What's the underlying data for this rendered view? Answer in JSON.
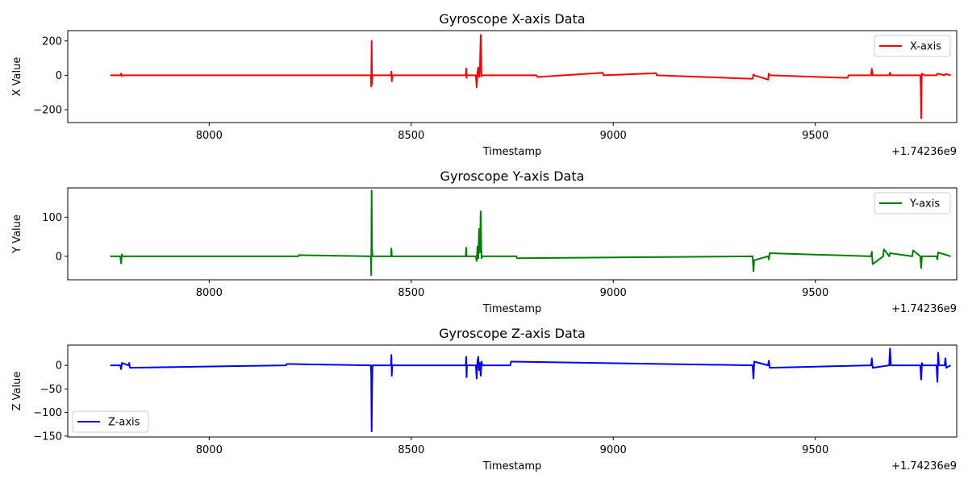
{
  "chart_data": [
    {
      "type": "line",
      "title": "Gyroscope X-axis Data",
      "xlabel": "Timestamp",
      "ylabel": "X Value",
      "offset_label": "+1.74236e9",
      "xlim": [
        7650,
        9850
      ],
      "ylim": [
        -275,
        260
      ],
      "xticks": [
        8000,
        8500,
        9000,
        9500
      ],
      "yticks": [
        -200,
        0,
        200
      ],
      "grid": false,
      "legend_position": "upper right",
      "series": [
        {
          "name": "X-axis",
          "color": "#ff0000",
          "x": [
            7755,
            7780,
            7782,
            7784,
            7786,
            8400,
            8401,
            8402,
            8403,
            8404,
            8450,
            8451,
            8452,
            8453,
            8635,
            8636,
            8637,
            8638,
            8660,
            8662,
            8664,
            8666,
            8668,
            8670,
            8672,
            8674,
            8676,
            8810,
            8812,
            8974,
            8976,
            9106,
            9108,
            9345,
            9347,
            9349,
            9383,
            9385,
            9387,
            9580,
            9582,
            9638,
            9640,
            9642,
            9683,
            9685,
            9687,
            9760,
            9761,
            9762,
            9763,
            9764,
            9770,
            9800,
            9802,
            9820,
            9822,
            9835
          ],
          "y": [
            0,
            0,
            10,
            -5,
            0,
            0,
            -65,
            200,
            -50,
            0,
            0,
            22,
            -35,
            0,
            0,
            40,
            -15,
            0,
            0,
            -70,
            20,
            45,
            -10,
            30,
            235,
            -5,
            0,
            0,
            -10,
            15,
            0,
            12,
            0,
            -20,
            5,
            0,
            -25,
            10,
            0,
            -15,
            0,
            0,
            38,
            0,
            0,
            15,
            0,
            0,
            -50,
            -250,
            -20,
            10,
            0,
            0,
            10,
            0,
            8,
            0
          ]
        }
      ]
    },
    {
      "type": "line",
      "title": "Gyroscope Y-axis Data",
      "xlabel": "Timestamp",
      "ylabel": "Y Value",
      "offset_label": "+1.74236e9",
      "xlim": [
        7650,
        9850
      ],
      "ylim": [
        -60,
        175
      ],
      "xticks": [
        8000,
        8500,
        9000,
        9500
      ],
      "yticks": [
        0,
        100
      ],
      "grid": false,
      "legend_position": "upper right",
      "series": [
        {
          "name": "Y-axis",
          "color": "#008000",
          "x": [
            7755,
            7780,
            7782,
            7784,
            7786,
            8220,
            8222,
            8400,
            8401,
            8402,
            8403,
            8404,
            8450,
            8451,
            8452,
            8635,
            8636,
            8637,
            8660,
            8662,
            8664,
            8666,
            8668,
            8670,
            8672,
            8674,
            8676,
            8760,
            8762,
            9345,
            9347,
            9349,
            9383,
            9385,
            9387,
            9638,
            9640,
            9642,
            9668,
            9670,
            9683,
            9685,
            9740,
            9742,
            9760,
            9762,
            9764,
            9800,
            9802,
            9804,
            9835
          ],
          "y": [
            0,
            0,
            -18,
            5,
            0,
            0,
            3,
            0,
            -48,
            168,
            20,
            0,
            0,
            20,
            0,
            0,
            22,
            0,
            0,
            -12,
            25,
            -5,
            70,
            10,
            115,
            -5,
            0,
            0,
            -5,
            0,
            -38,
            -10,
            0,
            -8,
            8,
            0,
            12,
            -20,
            0,
            18,
            0,
            8,
            0,
            15,
            0,
            -30,
            0,
            0,
            -8,
            10,
            0
          ]
        }
      ]
    },
    {
      "type": "line",
      "title": "Gyroscope Z-axis Data",
      "xlabel": "Timestamp",
      "ylabel": "Z Value",
      "offset_label": "+1.74236e9",
      "xlim": [
        7650,
        9850
      ],
      "ylim": [
        -152,
        43
      ],
      "xticks": [
        8000,
        8500,
        9000,
        9500
      ],
      "yticks": [
        -150,
        -100,
        -50,
        0
      ],
      "grid": false,
      "legend_position": "lower left",
      "series": [
        {
          "name": "Z-axis",
          "color": "#0000ff",
          "x": [
            7755,
            7780,
            7782,
            7784,
            7800,
            7802,
            7804,
            8190,
            8192,
            8400,
            8401,
            8402,
            8403,
            8404,
            8450,
            8451,
            8452,
            8453,
            8635,
            8636,
            8637,
            8638,
            8660,
            8662,
            8664,
            8666,
            8668,
            8670,
            8672,
            8674,
            8676,
            8745,
            8747,
            9345,
            9347,
            9349,
            9383,
            9385,
            9387,
            9638,
            9640,
            9642,
            9683,
            9685,
            9687,
            9760,
            9762,
            9764,
            9766,
            9800,
            9802,
            9804,
            9806,
            9820,
            9822,
            9824,
            9835
          ],
          "y": [
            0,
            0,
            -8,
            5,
            0,
            5,
            -5,
            0,
            3,
            0,
            -20,
            -140,
            -60,
            0,
            0,
            22,
            -22,
            0,
            0,
            18,
            -25,
            0,
            0,
            -28,
            10,
            18,
            -10,
            5,
            -22,
            8,
            0,
            0,
            8,
            0,
            -28,
            8,
            0,
            10,
            -5,
            0,
            15,
            -5,
            0,
            36,
            0,
            0,
            -30,
            5,
            0,
            0,
            -35,
            27,
            0,
            0,
            15,
            -5,
            0
          ]
        }
      ]
    }
  ]
}
